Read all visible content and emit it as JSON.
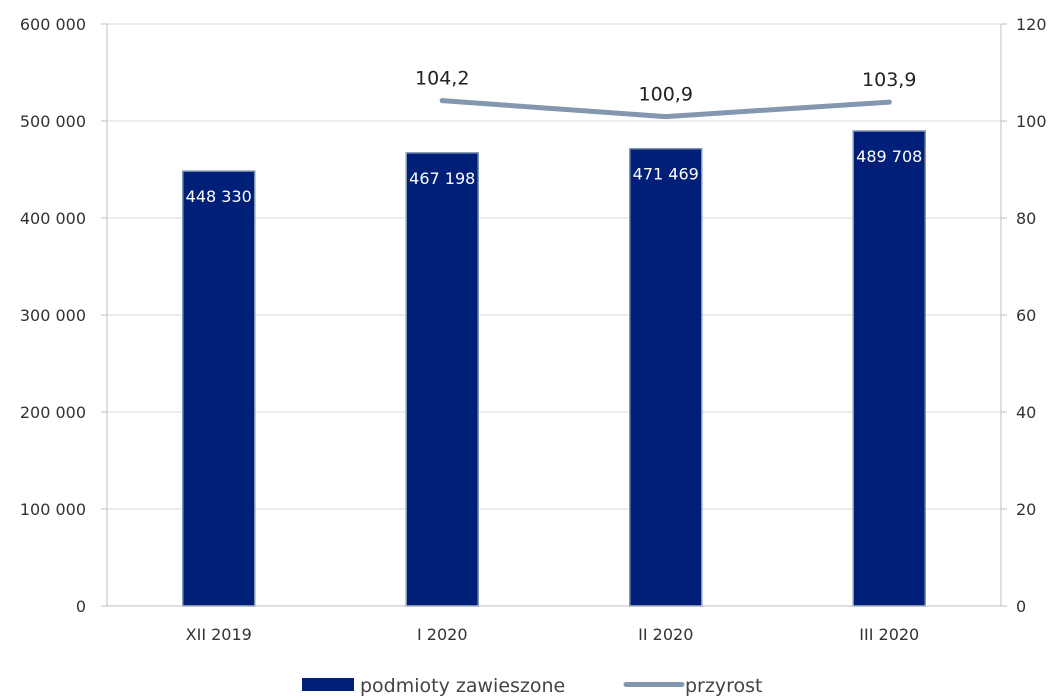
{
  "chart_data": {
    "type": "bar",
    "categories": [
      "XII 2019",
      "I 2020",
      "II 2020",
      "III 2020"
    ],
    "series": [
      {
        "name": "podmioty zawieszone",
        "type": "bar",
        "axis": "left",
        "values": [
          448330,
          467198,
          471469,
          489708
        ],
        "value_labels": [
          "448 330",
          "467 198",
          "471 469",
          "489 708"
        ],
        "color": "#001f78"
      },
      {
        "name": "przyrost",
        "type": "line",
        "axis": "right",
        "values": [
          null,
          104.2,
          100.9,
          103.9
        ],
        "value_labels": [
          "",
          "104,2",
          "100,9",
          "103,9"
        ],
        "color": "#8497b0"
      }
    ],
    "y_left": {
      "lim": [
        0,
        600000
      ],
      "ticks": [
        0,
        100000,
        200000,
        300000,
        400000,
        500000,
        600000
      ],
      "tick_labels": [
        "0",
        "100 000",
        "200 000",
        "300 000",
        "400 000",
        "500 000",
        "600 000"
      ]
    },
    "y_right": {
      "lim": [
        0,
        120
      ],
      "ticks": [
        0,
        20,
        40,
        60,
        80,
        100,
        120
      ],
      "tick_labels": [
        "0",
        "20",
        "40",
        "60",
        "80",
        "100",
        "120"
      ]
    },
    "title": "",
    "xlabel": "",
    "ylabel": "",
    "grid": true,
    "legend": "bottom"
  }
}
